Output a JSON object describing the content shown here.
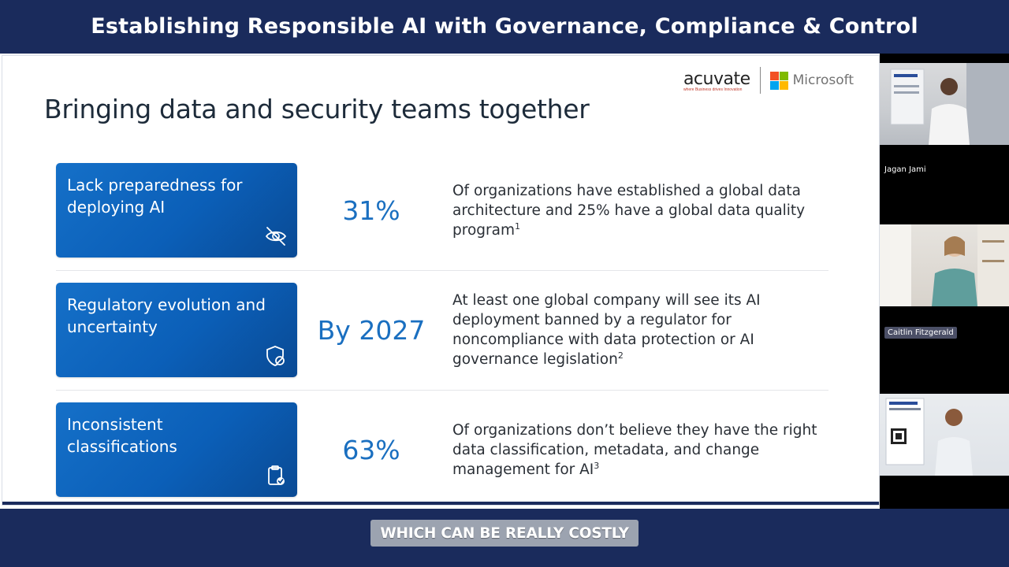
{
  "banner": {
    "title": "Establishing Responsible AI with Governance, Compliance & Control"
  },
  "slide": {
    "title": "Bringing data and security teams together",
    "logos": {
      "acuvate": "acuvate",
      "acuvate_tagline": "where Business drives Innovation",
      "microsoft": "Microsoft"
    },
    "rows": [
      {
        "label": "Lack preparedness for deploying AI",
        "icon": "eye-slash-icon",
        "stat": "31%",
        "desc": "Of organizations have established a global data architecture and 25% have a global data quality program",
        "ref": "1"
      },
      {
        "label": "Regulatory evolution and uncertainty",
        "icon": "shield-block-icon",
        "stat": "By 2027",
        "desc": "At least one global company will see its AI deployment banned by a regulator for noncompliance with data protection or AI governance legislation",
        "ref": "2"
      },
      {
        "label": "Inconsistent classifications",
        "icon": "clipboard-check-icon",
        "stat": "63%",
        "desc": "Of organizations don’t believe they have the right data classification, metadata, and change management for AI",
        "ref": "3"
      }
    ]
  },
  "participants": [
    {
      "name": "Jagan Jami"
    },
    {
      "name": "Caitlin Fitzgerald"
    },
    {
      "name": ""
    }
  ],
  "caption": {
    "text": "WHICH CAN BE REALLY COSTLY"
  },
  "colors": {
    "navy": "#1a2b5c",
    "card_blue": "#0b5fb8",
    "stat_blue": "#1a6fc0"
  }
}
